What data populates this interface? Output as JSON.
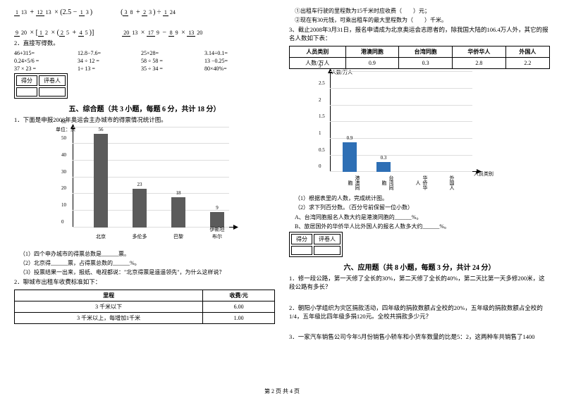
{
  "math_row1": {
    "e1": "1/13 + 12/13 × (2.5 − 1/3)",
    "e2": "(3/8 + 2/3) ÷ 1/24"
  },
  "math_row2": {
    "e1": "9/20 × [1/2 × (2/5 + 4/5)]",
    "e2": "20/13 × 17/9 − 8/9 × 13/20"
  },
  "mental_title": "2．直接写得数。",
  "mental": [
    [
      "46+315=",
      "12.8−7.6=",
      "25×28=",
      "3.14÷0.1="
    ],
    [
      "0.24×5/6 =",
      "34 ÷ 12 =",
      "58 ÷ 58 =",
      "13 −0.25="
    ],
    [
      "37 × 23 =",
      "1÷ 13 =",
      "35 ÷ 34 =",
      "80×40%="
    ]
  ],
  "score_box": {
    "c1": "得分",
    "c2": "评卷人"
  },
  "sec5_title": "五、综合题（共 3 小题，每题 6 分，共计 18 分）",
  "q5_1": "1．下面是申报2008年奥运会主办城市的得票情况统计图。",
  "chart1": {
    "unit": "单位：票",
    "ymax": 60,
    "ystep": 10,
    "bars": [
      {
        "label": "北京",
        "value": 56,
        "color": "#5b5b5b"
      },
      {
        "label": "多伦多",
        "value": 23,
        "color": "#5b5b5b"
      },
      {
        "label": "巴黎",
        "value": 18,
        "color": "#5b5b5b"
      },
      {
        "label": "伊斯坦布尔",
        "value": 9,
        "color": "#5b5b5b"
      }
    ]
  },
  "q5_1_sub": [
    "（1）四个申办城市的得票总数是______票。",
    "（2）北京得______票，占得票总数的______%。",
    "（3）投票结果一出来，报纸、电视都说：\"北京得票是遥遥领先\"，为什么这样说？"
  ],
  "q5_2": "2．聊城市出租车收费标准如下：",
  "table1": {
    "headers": [
      "里程",
      "收费/元"
    ],
    "rows": [
      [
        "3 千米以下",
        "6.00"
      ],
      [
        "3 千米以上，每增加1千米",
        "1.00"
      ]
    ]
  },
  "right_top": [
    "①出租车行驶的里程数为15千米时应收费（　　）元；",
    "②现在有30元钱，可乘出租车的最大里程数为（　　）千米。"
  ],
  "q5_3": "3、截止2008年3月31日，报名申请成为北京奥运会志愿者的，除我国大陆的106.4万人外，其它的报名人数如下表：",
  "table2": {
    "headers": [
      "人员类别",
      "港澳同胞",
      "台湾同胞",
      "华侨华人",
      "外国人"
    ],
    "row_label": "人数/万人",
    "values": [
      "0.9",
      "0.3",
      "2.8",
      "2.2"
    ]
  },
  "chart2": {
    "ylabel": "人数/万人",
    "xlabel": "人员类别",
    "ymax": 3,
    "ystep": 0.5,
    "bars": [
      {
        "label": "港澳同胞",
        "value": 0.9,
        "color": "#2e6fb5"
      },
      {
        "label": "台湾同胞",
        "value": 0.3,
        "color": "#2e6fb5"
      },
      {
        "label": "华侨华人",
        "value": null,
        "color": "#2e6fb5"
      },
      {
        "label": "外国人",
        "value": null,
        "color": "#2e6fb5"
      }
    ]
  },
  "q5_3_sub": [
    "（1）根据表里的人数，完成统计图。",
    "（2）求下列百分数。（百分号前保留一位小数）",
    "A、台湾同胞报名人数大约是港澳同胞的______%。",
    "B、旅居国外的华侨华人比外国人的报名人数多大约______%。"
  ],
  "sec6_title": "六、应用题（共 8 小题，每题 3 分，共计 24 分）",
  "q6": [
    "1．修一段公路，第一天修了全长的30%，第二天修了全长的40%，第二天比第一天多修200米，这段公路有多长？",
    "2．朝阳小学组织为灾区捐款活动，四年级的捐款数额占全校的20%，五年级的捐款数额占全校的1/4，五年级比四年级多捐120元。全校共捐款多少元？",
    "3．一家汽车销售公司今年5月份销售小轿车和小货车数量的比是5：2，这两种车共销售了1400"
  ],
  "footer": "第 2 页  共 4 页"
}
